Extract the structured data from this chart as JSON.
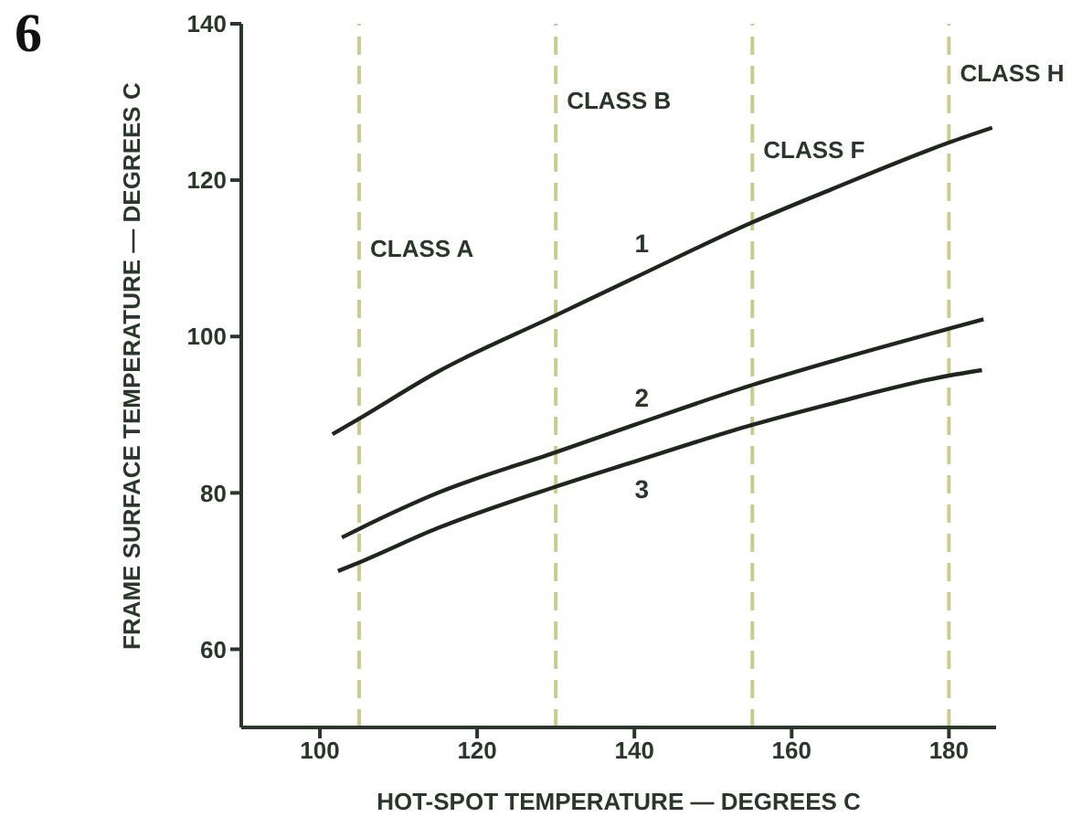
{
  "chart_data": {
    "type": "line",
    "xlabel": "HOT-SPOT TEMPERATURE — DEGREES C",
    "ylabel": "FRAME SURFACE TEMPERATURE — DEGREES C",
    "xlim": [
      90,
      186
    ],
    "xticks": [
      100,
      120,
      140,
      160,
      180
    ],
    "ylim": [
      50,
      140
    ],
    "yticks": [
      60,
      80,
      100,
      120,
      140
    ],
    "grid": false,
    "legend": false,
    "marker": "none",
    "line_style": "solid",
    "series": [
      {
        "name": "1",
        "color": "#1e261e",
        "x": [
          101.6,
          105,
          115,
          130,
          140,
          155,
          165,
          180,
          185.5
        ],
        "values": [
          87.5,
          89.5,
          95.5,
          102.7,
          107.5,
          114.6,
          118.8,
          124.8,
          126.7
        ]
      },
      {
        "name": "2",
        "color": "#1e261e",
        "x": [
          102.8,
          105,
          115,
          130,
          140,
          155,
          165,
          180,
          184.4
        ],
        "values": [
          74.3,
          75.4,
          80,
          85.2,
          88.7,
          93.8,
          96.8,
          101,
          102.2
        ]
      },
      {
        "name": "3",
        "color": "#1e261e",
        "x": [
          102.3,
          105,
          115,
          130,
          140,
          155,
          165,
          180,
          184.2
        ],
        "values": [
          70,
          71.1,
          75.5,
          80.8,
          84,
          88.7,
          91.4,
          95,
          95.7
        ]
      }
    ],
    "ref_lines": [
      {
        "axis": "x",
        "value": 105,
        "label": "CLASS A",
        "color": "#c9cc8e",
        "line_style": "dashed"
      },
      {
        "axis": "x",
        "value": 130,
        "label": "CLASS B",
        "color": "#c9cc8e",
        "line_style": "dashed"
      },
      {
        "axis": "x",
        "value": 155,
        "label": "CLASS F",
        "color": "#c9cc8e",
        "line_style": "dashed"
      },
      {
        "axis": "x",
        "value": 180,
        "label": "CLASS H",
        "color": "#c9cc8e",
        "line_style": "dashed"
      }
    ],
    "annotations": [
      "6"
    ]
  }
}
